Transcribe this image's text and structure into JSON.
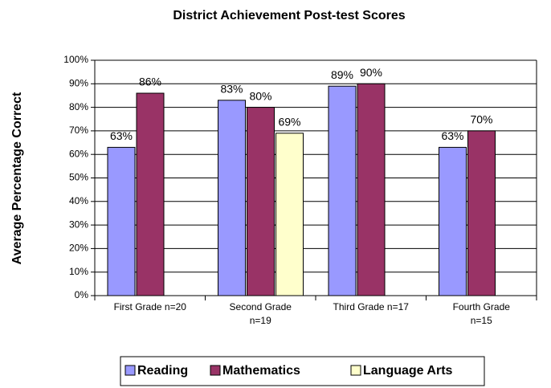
{
  "chart_data": {
    "type": "bar",
    "title": "District Achievement Post-test Scores",
    "y_label": "Average Percentage Correct",
    "categories": [
      "First Grade n=20",
      "Second Grade n=19",
      "Third Grade n=17",
      "Fourth Grade n=15"
    ],
    "series": [
      {
        "name": "Reading",
        "color": "#9999ff",
        "values": [
          63,
          83,
          89,
          63
        ],
        "value_labels": [
          "63%",
          "83%",
          "89%",
          "63%"
        ]
      },
      {
        "name": "Mathematics",
        "color": "#993366",
        "values": [
          86,
          80,
          90,
          70
        ],
        "value_labels": [
          "86%",
          "80%",
          "90%",
          "70%"
        ]
      },
      {
        "name": "Language Arts",
        "color": "#ffffcc",
        "values": [
          null,
          69,
          null,
          null
        ],
        "value_labels": [
          null,
          "69%",
          null,
          null
        ]
      }
    ],
    "ylim": [
      0,
      100
    ],
    "yticks": [
      {
        "value": 0,
        "label": "0%"
      },
      {
        "value": 10,
        "label": "10%"
      },
      {
        "value": 20,
        "label": "20%"
      },
      {
        "value": 30,
        "label": "30%"
      },
      {
        "value": 40,
        "label": "40%"
      },
      {
        "value": 50,
        "label": "50%"
      },
      {
        "value": 60,
        "label": "60%"
      },
      {
        "value": 70,
        "label": "70%"
      },
      {
        "value": 80,
        "label": "80%"
      },
      {
        "value": 90,
        "label": "90%"
      },
      {
        "value": 100,
        "label": "100%"
      }
    ],
    "grid": true,
    "legend": "bottom"
  }
}
